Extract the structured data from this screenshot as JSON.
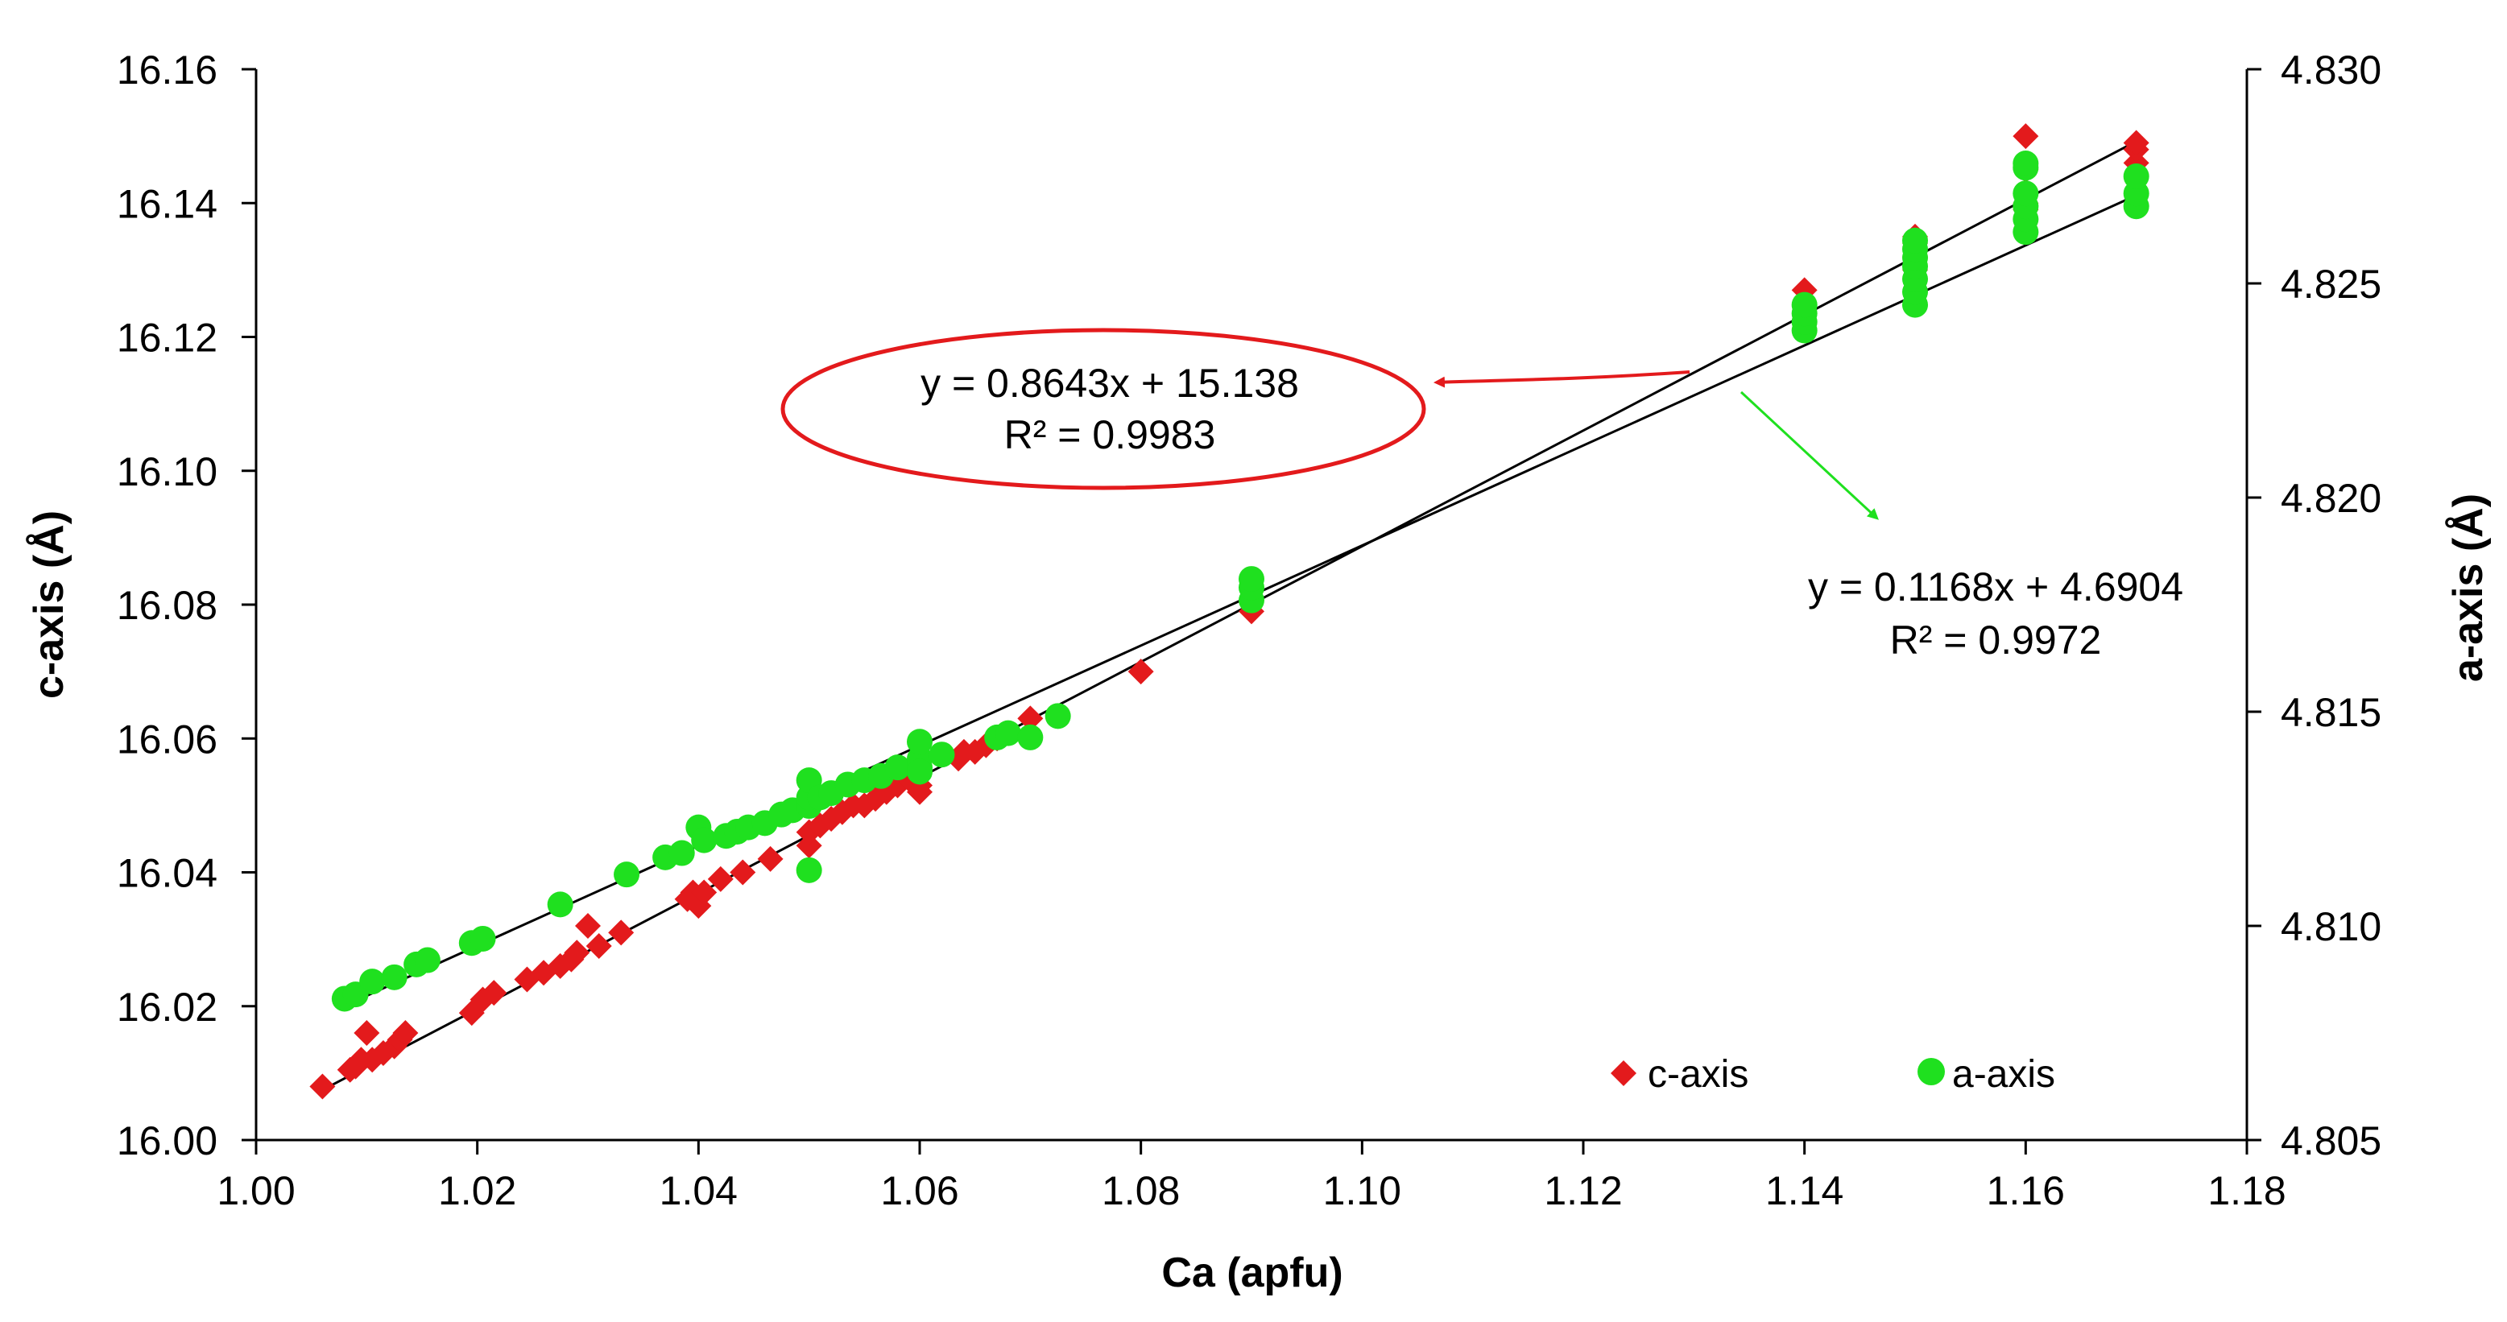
{
  "chart_data": {
    "type": "scatter",
    "title": "",
    "xlabel": "Ca (apfu)",
    "ylabel": "c-axis (Å)",
    "y2label": "a-axis (Å)",
    "xlim": [
      1.0,
      1.18
    ],
    "ylim": [
      16.0,
      16.16
    ],
    "y2lim": [
      4.805,
      4.83
    ],
    "grid": false,
    "legend_position": "bottom-right",
    "x_ticks": [
      "1.00",
      "1.02",
      "1.04",
      "1.06",
      "1.08",
      "1.10",
      "1.12",
      "1.14",
      "1.16",
      "1.18"
    ],
    "y_ticks": [
      "16.00",
      "16.02",
      "16.04",
      "16.06",
      "16.08",
      "16.10",
      "16.12",
      "16.14",
      "16.16"
    ],
    "y2_ticks": [
      "4.805",
      "4.810",
      "4.815",
      "4.820",
      "4.825",
      "4.830"
    ],
    "series": [
      {
        "name": "c-axis",
        "axis": "left",
        "marker": "diamond",
        "color": "#e31a1c",
        "x": [
          1.006,
          1.0085,
          1.009,
          1.0095,
          1.01,
          1.0105,
          1.0115,
          1.0125,
          1.013,
          1.0135,
          1.0195,
          1.0205,
          1.0215,
          1.0245,
          1.026,
          1.0275,
          1.0285,
          1.029,
          1.03,
          1.031,
          1.033,
          1.039,
          1.0395,
          1.04,
          1.0405,
          1.042,
          1.044,
          1.0465,
          1.05,
          1.05,
          1.051,
          1.052,
          1.053,
          1.054,
          1.055,
          1.056,
          1.057,
          1.058,
          1.059,
          1.06,
          1.06,
          1.0635,
          1.064,
          1.065,
          1.066,
          1.067,
          1.07,
          1.08,
          1.09,
          1.14,
          1.15,
          1.15,
          1.15,
          1.15,
          1.16,
          1.16,
          1.16,
          1.16,
          1.17,
          1.17,
          1.17
        ],
        "values": [
          16.008,
          16.0105,
          16.011,
          16.012,
          16.016,
          16.012,
          16.013,
          16.014,
          16.015,
          16.016,
          16.019,
          16.021,
          16.022,
          16.024,
          16.025,
          16.026,
          16.027,
          16.028,
          16.032,
          16.029,
          16.031,
          16.036,
          16.037,
          16.035,
          16.037,
          16.039,
          16.04,
          16.042,
          16.044,
          16.046,
          16.047,
          16.048,
          16.049,
          16.05,
          16.05,
          16.051,
          16.052,
          16.053,
          16.054,
          16.052,
          16.053,
          16.057,
          16.058,
          16.058,
          16.059,
          16.06,
          16.063,
          16.07,
          16.079,
          16.127,
          16.13,
          16.132,
          16.134,
          16.135,
          16.139,
          16.14,
          16.145,
          16.15,
          16.146,
          16.148,
          16.149
        ]
      },
      {
        "name": "a-axis",
        "axis": "right",
        "marker": "circle",
        "color": "#1fe01f",
        "x": [
          1.008,
          1.009,
          1.0105,
          1.0125,
          1.0145,
          1.0155,
          1.0195,
          1.0205,
          1.0275,
          1.0335,
          1.037,
          1.0385,
          1.04,
          1.0405,
          1.0425,
          1.0435,
          1.0445,
          1.046,
          1.0475,
          1.0485,
          1.05,
          1.05,
          1.05,
          1.05,
          1.051,
          1.052,
          1.0535,
          1.055,
          1.0565,
          1.058,
          1.06,
          1.06,
          1.06,
          1.06,
          1.062,
          1.067,
          1.068,
          1.07,
          1.0725,
          1.09,
          1.09,
          1.09,
          1.14,
          1.14,
          1.14,
          1.14,
          1.15,
          1.15,
          1.15,
          1.15,
          1.15,
          1.15,
          1.15,
          1.16,
          1.16,
          1.16,
          1.16,
          1.16,
          1.16,
          1.17,
          1.17,
          1.17
        ],
        "values": [
          4.8083,
          4.8084,
          4.8087,
          4.8088,
          4.8091,
          4.8092,
          4.8096,
          4.8097,
          4.8105,
          4.8112,
          4.8116,
          4.8117,
          4.8123,
          4.812,
          4.8121,
          4.8122,
          4.8123,
          4.8124,
          4.8126,
          4.8127,
          4.8128,
          4.813,
          4.8134,
          4.8113,
          4.813,
          4.8131,
          4.8133,
          4.8134,
          4.8135,
          4.8137,
          4.8137,
          4.8139,
          4.8143,
          4.8136,
          4.814,
          4.8144,
          4.8145,
          4.8144,
          4.8149,
          4.8176,
          4.8179,
          4.8181,
          4.8239,
          4.8241,
          4.8243,
          4.8245,
          4.8245,
          4.8248,
          4.8251,
          4.8254,
          4.8256,
          4.8258,
          4.826,
          4.8262,
          4.8265,
          4.8268,
          4.8271,
          4.8277,
          4.8278,
          4.8268,
          4.8271,
          4.8275
        ]
      }
    ],
    "trendlines": [
      {
        "series": "c-axis",
        "axis": "left",
        "slope": 0.8643,
        "intercept": 15.138,
        "x_range": [
          1.006,
          1.17
        ],
        "equation": "y = 0.8643x + 15.138",
        "r2": "R² = 0.9983"
      },
      {
        "series": "a-axis",
        "axis": "right",
        "slope": 0.1168,
        "intercept": 4.6904,
        "x_range": [
          1.008,
          1.17
        ],
        "equation": "y = 0.1168x + 4.6904",
        "r2": "R² = 0.9972"
      }
    ],
    "annotations": {
      "c_axis_highlight_color": "#e31a1c",
      "a_axis_arrow_color": "#1fe01f"
    }
  }
}
